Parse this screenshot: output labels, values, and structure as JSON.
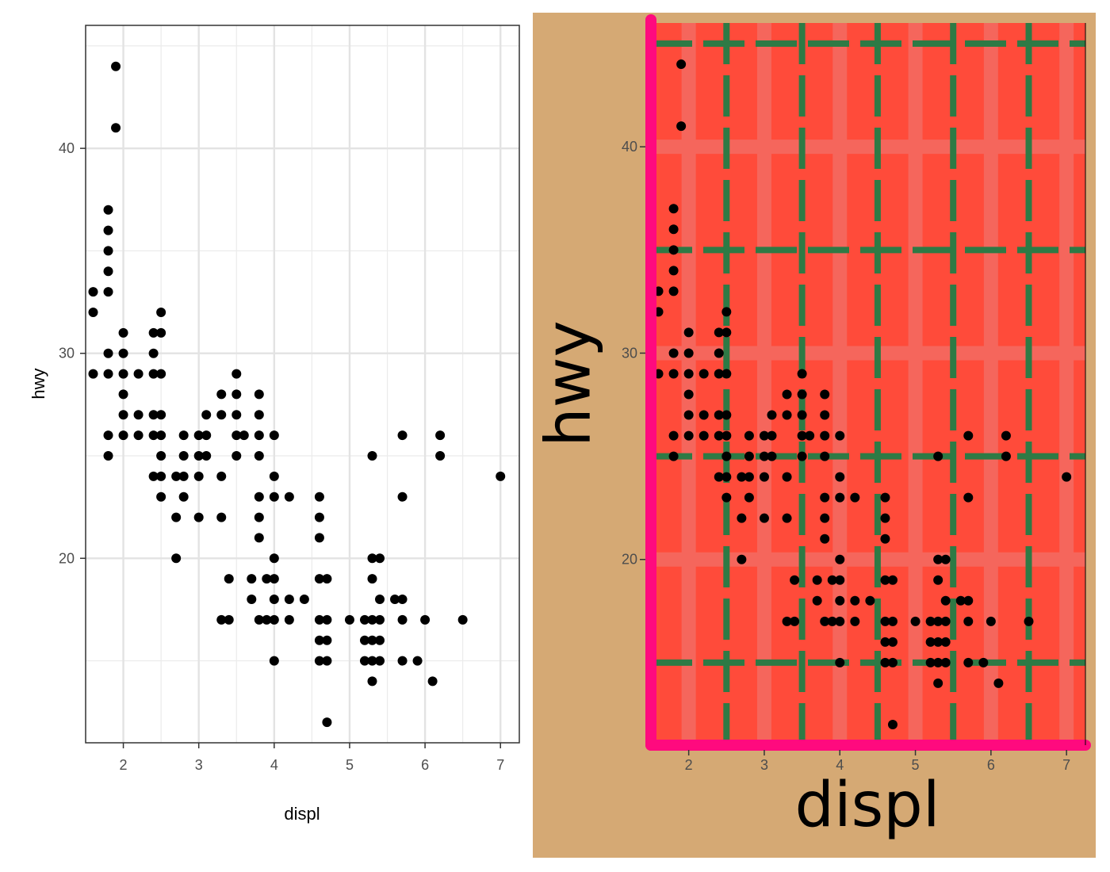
{
  "colors": {
    "left_point": "#000000",
    "right_background": "#D5A974",
    "right_panel": "#FF4B3A",
    "right_major_grid": "#F5665C",
    "right_minor_grid": "#2E7A45",
    "right_axis_line": "#FF0A7E"
  },
  "chart_data": [
    {
      "type": "scatter",
      "panel": "left",
      "title": "",
      "xlabel": "displ",
      "ylabel": "hwy",
      "xlim": [
        1.5,
        7.25
      ],
      "ylim": [
        11.0,
        46.0
      ],
      "x_ticks": [
        2,
        3,
        4,
        5,
        6,
        7
      ],
      "y_ticks": [
        20,
        30,
        40
      ],
      "x_tick_labels": [
        "2",
        "3",
        "4",
        "5",
        "6",
        "7"
      ],
      "y_tick_labels": [
        "20",
        "30",
        "40"
      ],
      "grid": "on",
      "theme": "bw",
      "series": [
        {
          "points": [
            [
              1.6,
              33
            ],
            [
              1.6,
              32
            ],
            [
              1.6,
              29
            ],
            [
              1.8,
              37
            ],
            [
              1.8,
              36
            ],
            [
              1.8,
              35
            ],
            [
              1.8,
              34
            ],
            [
              1.8,
              33
            ],
            [
              1.8,
              30
            ],
            [
              1.8,
              29
            ],
            [
              1.8,
              26
            ],
            [
              1.8,
              25
            ],
            [
              1.9,
              44
            ],
            [
              1.9,
              41
            ],
            [
              2.0,
              31
            ],
            [
              2.0,
              30
            ],
            [
              2.0,
              29
            ],
            [
              2.0,
              28
            ],
            [
              2.0,
              27
            ],
            [
              2.0,
              26
            ],
            [
              2.2,
              29
            ],
            [
              2.2,
              27
            ],
            [
              2.2,
              26
            ],
            [
              2.4,
              31
            ],
            [
              2.4,
              30
            ],
            [
              2.4,
              29
            ],
            [
              2.4,
              27
            ],
            [
              2.4,
              26
            ],
            [
              2.4,
              24
            ],
            [
              2.5,
              32
            ],
            [
              2.5,
              31
            ],
            [
              2.5,
              29
            ],
            [
              2.5,
              27
            ],
            [
              2.5,
              26
            ],
            [
              2.5,
              25
            ],
            [
              2.5,
              24
            ],
            [
              2.5,
              23
            ],
            [
              2.7,
              24
            ],
            [
              2.7,
              22
            ],
            [
              2.7,
              20
            ],
            [
              2.8,
              26
            ],
            [
              2.8,
              25
            ],
            [
              2.8,
              24
            ],
            [
              2.8,
              23
            ],
            [
              3.0,
              26
            ],
            [
              3.0,
              25
            ],
            [
              3.0,
              24
            ],
            [
              3.0,
              22
            ],
            [
              3.1,
              27
            ],
            [
              3.1,
              26
            ],
            [
              3.1,
              25
            ],
            [
              3.3,
              28
            ],
            [
              3.3,
              27
            ],
            [
              3.3,
              24
            ],
            [
              3.3,
              22
            ],
            [
              3.3,
              17
            ],
            [
              3.4,
              19
            ],
            [
              3.4,
              17
            ],
            [
              3.5,
              29
            ],
            [
              3.5,
              28
            ],
            [
              3.5,
              27
            ],
            [
              3.5,
              26
            ],
            [
              3.5,
              25
            ],
            [
              3.6,
              26
            ],
            [
              3.7,
              19
            ],
            [
              3.7,
              18
            ],
            [
              3.8,
              28
            ],
            [
              3.8,
              27
            ],
            [
              3.8,
              26
            ],
            [
              3.8,
              25
            ],
            [
              3.8,
              23
            ],
            [
              3.8,
              22
            ],
            [
              3.8,
              21
            ],
            [
              3.8,
              17
            ],
            [
              3.9,
              19
            ],
            [
              3.9,
              17
            ],
            [
              4.0,
              26
            ],
            [
              4.0,
              24
            ],
            [
              4.0,
              23
            ],
            [
              4.0,
              20
            ],
            [
              4.0,
              19
            ],
            [
              4.0,
              18
            ],
            [
              4.0,
              17
            ],
            [
              4.0,
              15
            ],
            [
              4.2,
              23
            ],
            [
              4.2,
              18
            ],
            [
              4.2,
              17
            ],
            [
              4.4,
              18
            ],
            [
              4.6,
              23
            ],
            [
              4.6,
              22
            ],
            [
              4.6,
              21
            ],
            [
              4.6,
              19
            ],
            [
              4.6,
              17
            ],
            [
              4.6,
              16
            ],
            [
              4.6,
              15
            ],
            [
              4.7,
              19
            ],
            [
              4.7,
              17
            ],
            [
              4.7,
              16
            ],
            [
              4.7,
              15
            ],
            [
              4.7,
              12
            ],
            [
              5.0,
              17
            ],
            [
              5.2,
              17
            ],
            [
              5.2,
              16
            ],
            [
              5.2,
              15
            ],
            [
              5.3,
              25
            ],
            [
              5.3,
              20
            ],
            [
              5.3,
              19
            ],
            [
              5.3,
              17
            ],
            [
              5.3,
              16
            ],
            [
              5.3,
              15
            ],
            [
              5.3,
              14
            ],
            [
              5.4,
              20
            ],
            [
              5.4,
              18
            ],
            [
              5.4,
              17
            ],
            [
              5.4,
              16
            ],
            [
              5.4,
              15
            ],
            [
              5.6,
              18
            ],
            [
              5.7,
              26
            ],
            [
              5.7,
              23
            ],
            [
              5.7,
              18
            ],
            [
              5.7,
              17
            ],
            [
              5.7,
              15
            ],
            [
              5.9,
              15
            ],
            [
              6.0,
              17
            ],
            [
              6.1,
              14
            ],
            [
              6.2,
              26
            ],
            [
              6.2,
              25
            ],
            [
              6.5,
              17
            ],
            [
              7.0,
              24
            ]
          ]
        }
      ]
    },
    {
      "type": "scatter",
      "panel": "right",
      "title": "",
      "xlabel": "displ",
      "ylabel": "hwy",
      "xlim": [
        1.5,
        7.25
      ],
      "ylim": [
        11.0,
        46.0
      ],
      "x_ticks": [
        2,
        3,
        4,
        5,
        6,
        7
      ],
      "y_ticks": [
        20,
        30,
        40
      ],
      "x_tick_labels": [
        "2",
        "3",
        "4",
        "5",
        "6",
        "7"
      ],
      "y_tick_labels": [
        "20",
        "30",
        "40"
      ],
      "grid": "on",
      "theme": "custom",
      "series": [
        {
          "points": [
            [
              1.6,
              33
            ],
            [
              1.6,
              32
            ],
            [
              1.6,
              29
            ],
            [
              1.8,
              37
            ],
            [
              1.8,
              36
            ],
            [
              1.8,
              35
            ],
            [
              1.8,
              34
            ],
            [
              1.8,
              33
            ],
            [
              1.8,
              30
            ],
            [
              1.8,
              29
            ],
            [
              1.8,
              26
            ],
            [
              1.8,
              25
            ],
            [
              1.9,
              44
            ],
            [
              1.9,
              41
            ],
            [
              2.0,
              31
            ],
            [
              2.0,
              30
            ],
            [
              2.0,
              29
            ],
            [
              2.0,
              28
            ],
            [
              2.0,
              27
            ],
            [
              2.0,
              26
            ],
            [
              2.2,
              29
            ],
            [
              2.2,
              27
            ],
            [
              2.2,
              26
            ],
            [
              2.4,
              31
            ],
            [
              2.4,
              30
            ],
            [
              2.4,
              29
            ],
            [
              2.4,
              27
            ],
            [
              2.4,
              26
            ],
            [
              2.4,
              24
            ],
            [
              2.5,
              32
            ],
            [
              2.5,
              31
            ],
            [
              2.5,
              29
            ],
            [
              2.5,
              27
            ],
            [
              2.5,
              26
            ],
            [
              2.5,
              25
            ],
            [
              2.5,
              24
            ],
            [
              2.5,
              23
            ],
            [
              2.7,
              24
            ],
            [
              2.7,
              22
            ],
            [
              2.7,
              20
            ],
            [
              2.8,
              26
            ],
            [
              2.8,
              25
            ],
            [
              2.8,
              24
            ],
            [
              2.8,
              23
            ],
            [
              3.0,
              26
            ],
            [
              3.0,
              25
            ],
            [
              3.0,
              24
            ],
            [
              3.0,
              22
            ],
            [
              3.1,
              27
            ],
            [
              3.1,
              26
            ],
            [
              3.1,
              25
            ],
            [
              3.3,
              28
            ],
            [
              3.3,
              27
            ],
            [
              3.3,
              24
            ],
            [
              3.3,
              22
            ],
            [
              3.3,
              17
            ],
            [
              3.4,
              19
            ],
            [
              3.4,
              17
            ],
            [
              3.5,
              29
            ],
            [
              3.5,
              28
            ],
            [
              3.5,
              27
            ],
            [
              3.5,
              26
            ],
            [
              3.5,
              25
            ],
            [
              3.6,
              26
            ],
            [
              3.7,
              19
            ],
            [
              3.7,
              18
            ],
            [
              3.8,
              28
            ],
            [
              3.8,
              27
            ],
            [
              3.8,
              26
            ],
            [
              3.8,
              25
            ],
            [
              3.8,
              23
            ],
            [
              3.8,
              22
            ],
            [
              3.8,
              21
            ],
            [
              3.8,
              17
            ],
            [
              3.9,
              19
            ],
            [
              3.9,
              17
            ],
            [
              4.0,
              26
            ],
            [
              4.0,
              24
            ],
            [
              4.0,
              23
            ],
            [
              4.0,
              20
            ],
            [
              4.0,
              19
            ],
            [
              4.0,
              18
            ],
            [
              4.0,
              17
            ],
            [
              4.0,
              15
            ],
            [
              4.2,
              23
            ],
            [
              4.2,
              18
            ],
            [
              4.2,
              17
            ],
            [
              4.4,
              18
            ],
            [
              4.6,
              23
            ],
            [
              4.6,
              22
            ],
            [
              4.6,
              21
            ],
            [
              4.6,
              19
            ],
            [
              4.6,
              17
            ],
            [
              4.6,
              16
            ],
            [
              4.6,
              15
            ],
            [
              4.7,
              19
            ],
            [
              4.7,
              17
            ],
            [
              4.7,
              16
            ],
            [
              4.7,
              15
            ],
            [
              4.7,
              12
            ],
            [
              5.0,
              17
            ],
            [
              5.2,
              17
            ],
            [
              5.2,
              16
            ],
            [
              5.2,
              15
            ],
            [
              5.3,
              25
            ],
            [
              5.3,
              20
            ],
            [
              5.3,
              19
            ],
            [
              5.3,
              17
            ],
            [
              5.3,
              16
            ],
            [
              5.3,
              15
            ],
            [
              5.3,
              14
            ],
            [
              5.4,
              20
            ],
            [
              5.4,
              18
            ],
            [
              5.4,
              17
            ],
            [
              5.4,
              16
            ],
            [
              5.4,
              15
            ],
            [
              5.6,
              18
            ],
            [
              5.7,
              26
            ],
            [
              5.7,
              23
            ],
            [
              5.7,
              18
            ],
            [
              5.7,
              17
            ],
            [
              5.7,
              15
            ],
            [
              5.9,
              15
            ],
            [
              6.0,
              17
            ],
            [
              6.1,
              14
            ],
            [
              6.2,
              26
            ],
            [
              6.2,
              25
            ],
            [
              6.5,
              17
            ],
            [
              7.0,
              24
            ]
          ]
        }
      ]
    }
  ]
}
